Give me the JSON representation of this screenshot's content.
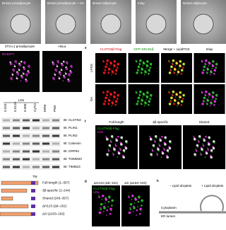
{
  "em": {
    "labels": [
      "Brown preadipocyte",
      "Brown preadipocyte + OA",
      "Brown adipocyte",
      "Inlay",
      "Brown adipocyte"
    ]
  },
  "cells": {
    "labels": [
      "3T3-L1 preadipocyte",
      "HeLa"
    ],
    "stain": "BODIPY"
  },
  "panel_e": {
    "letter": "e",
    "columns": [
      "CLSTN3β-Flag",
      "GFP-SEC61β",
      "Merge + LipidTOX",
      "Inlay"
    ],
    "rows": [
      "LPDS",
      "OA"
    ]
  },
  "blot": {
    "group": "LDs",
    "lanes": [
      "0.025",
      "0.0125",
      "0.006",
      "CyTO",
      "ERM",
      "PNS"
    ],
    "rows": [
      "IB: CLSTN3",
      "IB: PLIN1",
      "IB: PLIN2",
      "IB: Calnexin",
      "IB: GRP94",
      "IB: TOMM20",
      "IB: TIMM23"
    ]
  },
  "panel_f": {
    "letter": "f",
    "columns": [
      "Full-length",
      "3β-specific",
      "Shared"
    ],
    "legend": [
      "CLSTN3β-Flag",
      "LDs"
    ]
  },
  "constructs": {
    "tm": "TM",
    "items": [
      "Full-length (1–357)",
      "3β-specific (1–244)",
      "Shared (245–357)",
      "ΔH123 (Δ8–161)",
      "ΔS (Δ163–192)"
    ]
  },
  "panel_g": {
    "letter": "g",
    "columns": [
      "ΔH123 (Δ8–161)",
      "ΔS (Δ163–192)"
    ],
    "legend": [
      "CLSTN3β-Flag",
      "LDs"
    ]
  },
  "panel_h": {
    "letter": "h",
    "columns": [
      "– Lipid droplets",
      "+ Lipid droplets"
    ],
    "compartments": [
      "Cytoplasm",
      "ER lumen"
    ]
  }
}
